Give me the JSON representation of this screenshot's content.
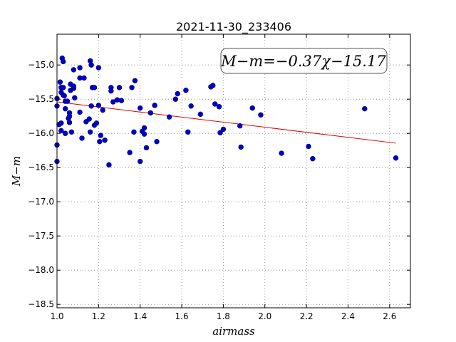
{
  "chart_data": {
    "type": "scatter",
    "title": "2021-11-30_233406",
    "xlabel": "airmass",
    "ylabel": "M−m",
    "xlim": [
      1.0,
      2.7
    ],
    "ylim": [
      -18.55,
      -14.55
    ],
    "y_inverted": true,
    "grid": true,
    "x_ticks": [
      "1.0",
      "1.2",
      "1.4",
      "1.6",
      "1.8",
      "2.0",
      "2.2",
      "2.4",
      "2.6"
    ],
    "y_ticks": [
      "−15.0",
      "−15.5",
      "−16.0",
      "−16.5",
      "−17.0",
      "−17.5",
      "−18.0",
      "−18.5"
    ],
    "x_tick_values": [
      1.0,
      1.2,
      1.4,
      1.6,
      1.8,
      2.0,
      2.2,
      2.4,
      2.6
    ],
    "y_tick_values": [
      -15.0,
      -15.5,
      -16.0,
      -16.5,
      -17.0,
      -17.5,
      -18.0,
      -18.5
    ],
    "annotation": "M−m=−0.37χ−15.17",
    "fit": {
      "slope": -0.37,
      "intercept": -15.17,
      "x_range": [
        1.0,
        2.63
      ]
    },
    "colors": {
      "points": "#0000cc",
      "points_edge": "#000066",
      "fit_line": "#e00000",
      "grid": "#888888"
    },
    "points": [
      [
        1.0,
        -15.49
      ],
      [
        1.0,
        -15.6
      ],
      [
        1.0,
        -16.17
      ],
      [
        1.0,
        -16.41
      ],
      [
        1.01,
        -15.87
      ],
      [
        1.015,
        -15.25
      ],
      [
        1.02,
        -15.4
      ],
      [
        1.02,
        -15.33
      ],
      [
        1.02,
        -15.85
      ],
      [
        1.02,
        -15.96
      ],
      [
        1.025,
        -14.9
      ],
      [
        1.03,
        -14.95
      ],
      [
        1.03,
        -15.33
      ],
      [
        1.03,
        -15.44
      ],
      [
        1.035,
        -15.45
      ],
      [
        1.04,
        -15.53
      ],
      [
        1.04,
        -15.64
      ],
      [
        1.04,
        -16.0
      ],
      [
        1.05,
        -15.53
      ],
      [
        1.055,
        -15.78
      ],
      [
        1.06,
        -15.7
      ],
      [
        1.06,
        -15.75
      ],
      [
        1.06,
        -15.84
      ],
      [
        1.065,
        -15.37
      ],
      [
        1.065,
        -15.28
      ],
      [
        1.07,
        -15.98
      ],
      [
        1.08,
        -15.34
      ],
      [
        1.08,
        -15.31
      ],
      [
        1.085,
        -15.48
      ],
      [
        1.08,
        -15.07
      ],
      [
        1.11,
        -15.19
      ],
      [
        1.11,
        -15.04
      ],
      [
        1.11,
        -15.69
      ],
      [
        1.13,
        -15.19
      ],
      [
        1.12,
        -16.07
      ],
      [
        1.14,
        -15.83
      ],
      [
        1.155,
        -15.79
      ],
      [
        1.16,
        -15.98
      ],
      [
        1.16,
        -14.94
      ],
      [
        1.165,
        -15.0
      ],
      [
        1.165,
        -15.6
      ],
      [
        1.17,
        -15.33
      ],
      [
        1.18,
        -15.33
      ],
      [
        1.18,
        -15.88
      ],
      [
        1.19,
        -15.85
      ],
      [
        1.2,
        -15.04
      ],
      [
        1.2,
        -15.59
      ],
      [
        1.21,
        -16.03
      ],
      [
        1.205,
        -16.12
      ],
      [
        1.22,
        -15.66
      ],
      [
        1.23,
        -16.1
      ],
      [
        1.25,
        -16.46
      ],
      [
        1.26,
        -15.33
      ],
      [
        1.26,
        -15.38
      ],
      [
        1.27,
        -15.54
      ],
      [
        1.29,
        -15.51
      ],
      [
        1.3,
        -15.33
      ],
      [
        1.31,
        -15.52
      ],
      [
        1.35,
        -16.28
      ],
      [
        1.36,
        -15.33
      ],
      [
        1.37,
        -15.98
      ],
      [
        1.375,
        -15.23
      ],
      [
        1.4,
        -15.63
      ],
      [
        1.4,
        -16.41
      ],
      [
        1.41,
        -15.97
      ],
      [
        1.42,
        -16.01
      ],
      [
        1.42,
        -15.92
      ],
      [
        1.43,
        -16.21
      ],
      [
        1.45,
        -15.7
      ],
      [
        1.47,
        -15.59
      ],
      [
        1.48,
        -16.12
      ],
      [
        1.54,
        -15.76
      ],
      [
        1.57,
        -15.5
      ],
      [
        1.58,
        -15.42
      ],
      [
        1.62,
        -15.37
      ],
      [
        1.63,
        -15.98
      ],
      [
        1.645,
        -15.6
      ],
      [
        1.69,
        -15.72
      ],
      [
        1.74,
        -15.32
      ],
      [
        1.75,
        -15.3
      ],
      [
        1.76,
        -15.57
      ],
      [
        1.78,
        -15.61
      ],
      [
        1.785,
        -15.99
      ],
      [
        1.8,
        -15.94
      ],
      [
        1.88,
        -15.89
      ],
      [
        1.885,
        -16.2
      ],
      [
        1.94,
        -15.63
      ],
      [
        1.98,
        -15.73
      ],
      [
        2.08,
        -16.29
      ],
      [
        2.21,
        -16.19
      ],
      [
        2.23,
        -16.37
      ],
      [
        2.48,
        -15.64
      ],
      [
        2.63,
        -16.36
      ]
    ]
  }
}
